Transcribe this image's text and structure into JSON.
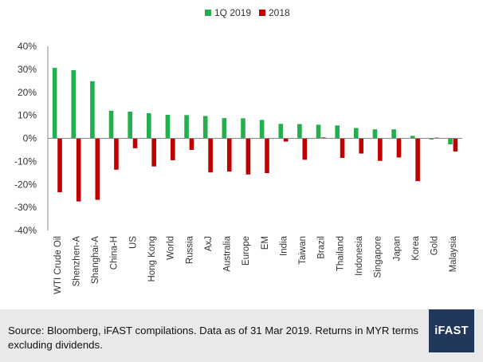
{
  "chart_data": {
    "type": "bar",
    "categories": [
      "WTI Crude Oil",
      "Shenzhen-A",
      "Shanghai-A",
      "China-H",
      "US",
      "Hong Kong",
      "World",
      "Russia",
      "AxJ",
      "Australia",
      "Europe",
      "EM",
      "India",
      "Taiwan",
      "Brazil",
      "Thailand",
      "Indonesia",
      "Singapore",
      "Japan",
      "Korea",
      "Gold",
      "Malaysia"
    ],
    "series": [
      {
        "name": "1Q 2019",
        "color": "#21b04b",
        "values": [
          30.6,
          29.6,
          24.8,
          12.0,
          11.6,
          10.9,
          10.2,
          10.1,
          9.7,
          8.8,
          8.7,
          8.0,
          6.3,
          6.2,
          5.9,
          5.6,
          4.5,
          3.9,
          3.9,
          1.1,
          -0.5,
          -2.6
        ]
      },
      {
        "name": "2018",
        "color": "#c00000",
        "values": [
          -23.4,
          -27.4,
          -26.7,
          -13.6,
          -4.3,
          -12.2,
          -9.5,
          -5.0,
          -14.8,
          -14.4,
          -15.7,
          -15.1,
          -1.4,
          -9.3,
          0.4,
          -8.5,
          -6.6,
          -9.8,
          -8.3,
          -18.6,
          0.3,
          -5.7
        ]
      }
    ],
    "yticks": [
      "40%",
      "30%",
      "20%",
      "10%",
      "0%",
      "-10%",
      "-20%",
      "-30%",
      "-40%"
    ],
    "ylim": [
      -40,
      40
    ],
    "legend_position": "top-center",
    "grid": false
  },
  "footer": {
    "source": "Source: Bloomberg, iFAST compilations. Data as of 31 Mar 2019.  Returns in MYR terms excluding dividends.",
    "logo": "iFAST"
  }
}
